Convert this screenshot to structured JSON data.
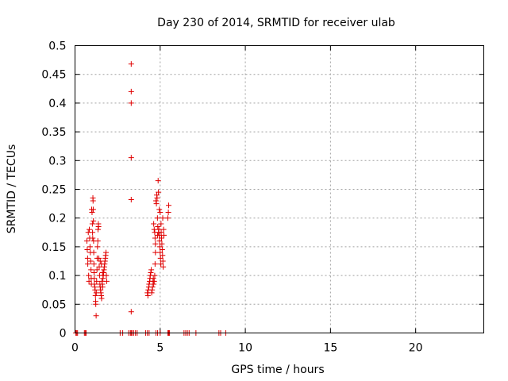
{
  "chart_data": {
    "type": "scatter",
    "title": "Day 230 of 2014, SRMTID for receiver ulab",
    "xlabel": "GPS time / hours",
    "ylabel": "SRMTID / TECUs",
    "xlim": [
      0,
      24
    ],
    "ylim": [
      0,
      0.5
    ],
    "grid": true,
    "marker": "+",
    "color": "#e00000",
    "x_ticks": [
      0,
      5,
      10,
      15,
      20
    ],
    "x_tick_labels": [
      "0",
      "5",
      "10",
      "15",
      "20"
    ],
    "y_ticks": [
      0,
      0.05,
      0.1,
      0.15,
      0.2,
      0.25,
      0.3,
      0.35,
      0.4,
      0.45,
      0.5
    ],
    "y_tick_labels": [
      "0",
      "0.05",
      "0.1",
      "0.15",
      "0.2",
      "0.25",
      "0.3",
      "0.35",
      "0.4",
      "0.45",
      "0.5"
    ],
    "series": [
      {
        "name": "SRMTID",
        "points": [
          [
            0.05,
            0
          ],
          [
            0.1,
            0
          ],
          [
            0.15,
            0
          ],
          [
            0.55,
            0
          ],
          [
            0.6,
            0
          ],
          [
            0.65,
            0
          ],
          [
            2.65,
            0
          ],
          [
            2.8,
            0
          ],
          [
            3.15,
            0
          ],
          [
            3.25,
            0
          ],
          [
            3.3,
            0
          ],
          [
            3.35,
            0
          ],
          [
            3.45,
            0
          ],
          [
            3.55,
            0
          ],
          [
            3.65,
            0
          ],
          [
            4.15,
            0
          ],
          [
            4.25,
            0
          ],
          [
            4.35,
            0
          ],
          [
            4.75,
            0
          ],
          [
            4.85,
            0
          ],
          [
            5.0,
            0
          ],
          [
            5.45,
            0
          ],
          [
            5.5,
            0
          ],
          [
            5.55,
            0
          ],
          [
            6.4,
            0
          ],
          [
            6.5,
            0
          ],
          [
            6.6,
            0
          ],
          [
            6.7,
            0
          ],
          [
            7.1,
            0
          ],
          [
            8.45,
            0
          ],
          [
            8.55,
            0
          ],
          [
            8.85,
            0
          ],
          [
            0.7,
            0.16
          ],
          [
            0.72,
            0.145
          ],
          [
            0.74,
            0.13
          ],
          [
            0.75,
            0.12
          ],
          [
            0.78,
            0.175
          ],
          [
            0.8,
            0.1
          ],
          [
            0.82,
            0.09
          ],
          [
            0.84,
            0.18
          ],
          [
            0.86,
            0.165
          ],
          [
            0.88,
            0.15
          ],
          [
            0.9,
            0.14
          ],
          [
            0.92,
            0.125
          ],
          [
            0.94,
            0.11
          ],
          [
            0.95,
            0.095
          ],
          [
            0.96,
            0.085
          ],
          [
            0.98,
            0.215
          ],
          [
            1.0,
            0.21
          ],
          [
            1.02,
            0.19
          ],
          [
            1.03,
            0.175
          ],
          [
            1.04,
            0.165
          ],
          [
            1.05,
            0.235
          ],
          [
            1.06,
            0.23
          ],
          [
            1.07,
            0.215
          ],
          [
            1.08,
            0.195
          ],
          [
            1.09,
            0.16
          ],
          [
            1.1,
            0.14
          ],
          [
            1.11,
            0.12
          ],
          [
            1.12,
            0.105
          ],
          [
            1.13,
            0.095
          ],
          [
            1.14,
            0.085
          ],
          [
            1.16,
            0.08
          ],
          [
            1.18,
            0.075
          ],
          [
            1.2,
            0.065
          ],
          [
            1.21,
            0.055
          ],
          [
            1.22,
            0.05
          ],
          [
            1.24,
            0.03
          ],
          [
            1.25,
            0.07
          ],
          [
            1.27,
            0.09
          ],
          [
            1.29,
            0.11
          ],
          [
            1.3,
            0.13
          ],
          [
            1.32,
            0.15
          ],
          [
            1.34,
            0.16
          ],
          [
            1.35,
            0.18
          ],
          [
            1.37,
            0.19
          ],
          [
            1.38,
            0.185
          ],
          [
            1.4,
            0.13
          ],
          [
            1.42,
            0.115
          ],
          [
            1.44,
            0.1
          ],
          [
            1.46,
            0.085
          ],
          [
            1.48,
            0.08
          ],
          [
            1.5,
            0.075
          ],
          [
            1.52,
            0.07
          ],
          [
            1.54,
            0.065
          ],
          [
            1.56,
            0.06
          ],
          [
            1.58,
            0.09
          ],
          [
            1.6,
            0.085
          ],
          [
            1.62,
            0.08
          ],
          [
            1.64,
            0.095
          ],
          [
            1.66,
            0.1
          ],
          [
            1.68,
            0.105
          ],
          [
            1.7,
            0.11
          ],
          [
            1.72,
            0.115
          ],
          [
            1.74,
            0.12
          ],
          [
            1.76,
            0.125
          ],
          [
            1.78,
            0.13
          ],
          [
            1.8,
            0.135
          ],
          [
            1.82,
            0.14
          ],
          [
            1.84,
            0.1
          ],
          [
            1.86,
            0.09
          ],
          [
            1.62,
            0.105
          ],
          [
            1.55,
            0.12
          ],
          [
            1.48,
            0.125
          ],
          [
            3.3,
            0.468
          ],
          [
            3.3,
            0.42
          ],
          [
            3.3,
            0.4
          ],
          [
            3.3,
            0.305
          ],
          [
            3.3,
            0.232
          ],
          [
            3.3,
            0.037
          ],
          [
            4.25,
            0.07
          ],
          [
            4.28,
            0.065
          ],
          [
            4.3,
            0.075
          ],
          [
            4.33,
            0.08
          ],
          [
            4.35,
            0.085
          ],
          [
            4.38,
            0.09
          ],
          [
            4.4,
            0.095
          ],
          [
            4.42,
            0.1
          ],
          [
            4.45,
            0.105
          ],
          [
            4.48,
            0.11
          ],
          [
            4.5,
            0.07
          ],
          [
            4.53,
            0.075
          ],
          [
            4.55,
            0.08
          ],
          [
            4.58,
            0.09
          ],
          [
            4.6,
            0.095
          ],
          [
            4.62,
            0.085
          ],
          [
            4.65,
            0.09
          ],
          [
            4.68,
            0.1
          ],
          [
            4.7,
            0.12
          ],
          [
            4.72,
            0.14
          ],
          [
            4.62,
            0.19
          ],
          [
            4.65,
            0.18
          ],
          [
            4.68,
            0.175
          ],
          [
            4.7,
            0.165
          ],
          [
            4.72,
            0.155
          ],
          [
            4.75,
            0.23
          ],
          [
            4.78,
            0.225
          ],
          [
            4.8,
            0.24
          ],
          [
            4.82,
            0.235
          ],
          [
            4.84,
            0.2
          ],
          [
            4.86,
            0.185
          ],
          [
            4.88,
            0.265
          ],
          [
            4.9,
            0.245
          ],
          [
            4.92,
            0.18
          ],
          [
            4.94,
            0.17
          ],
          [
            4.96,
            0.16
          ],
          [
            4.98,
            0.15
          ],
          [
            5.0,
            0.14
          ],
          [
            5.02,
            0.13
          ],
          [
            5.04,
            0.12
          ],
          [
            5.06,
            0.175
          ],
          [
            5.08,
            0.165
          ],
          [
            5.1,
            0.155
          ],
          [
            5.12,
            0.145
          ],
          [
            5.14,
            0.135
          ],
          [
            5.16,
            0.125
          ],
          [
            5.18,
            0.115
          ],
          [
            5.2,
            0.18
          ],
          [
            5.22,
            0.17
          ],
          [
            5.05,
            0.19
          ],
          [
            5.0,
            0.21
          ],
          [
            4.95,
            0.215
          ],
          [
            4.9,
            0.175
          ],
          [
            4.85,
            0.17
          ],
          [
            5.15,
            0.2
          ],
          [
            5.5,
            0.222
          ],
          [
            5.48,
            0.21
          ],
          [
            5.45,
            0.2
          ]
        ]
      }
    ]
  }
}
